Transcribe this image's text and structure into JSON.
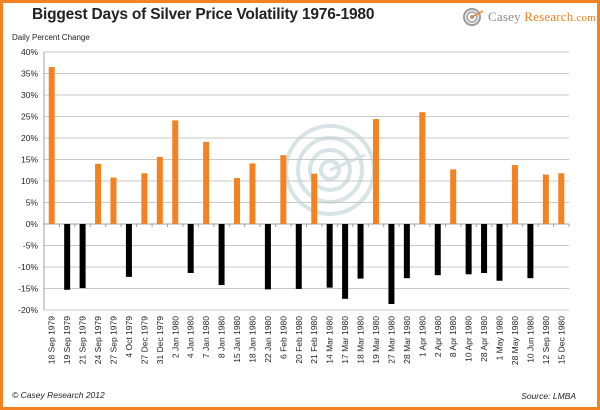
{
  "header": {
    "title": "Biggest Days of Silver Price Volatility 1976-1980",
    "logo_name": "casey-research-logo",
    "logo_text_1": "Casey ",
    "logo_text_2": "Research",
    "logo_text_3": ".com"
  },
  "footer": {
    "copyright": "© Casey Research 2012",
    "source": "Source: LMBA"
  },
  "colors": {
    "positive": "#f58220",
    "negative": "#000000",
    "border": "#f58220",
    "gridline": "#c8c8c8"
  },
  "chart_data": {
    "type": "bar",
    "title": "Biggest Days of Silver Price Volatility 1976-1980",
    "xlabel": "",
    "ylabel": "Daily Percent Change",
    "ylim": [
      -20,
      40
    ],
    "yticks": [
      40,
      35,
      30,
      25,
      20,
      15,
      10,
      5,
      0,
      -5,
      -10,
      -15,
      -20
    ],
    "ytick_labels": [
      "40%",
      "35%",
      "30%",
      "25%",
      "20%",
      "15%",
      "10%",
      "5%",
      "0%",
      "-5%",
      "-10%",
      "-15%",
      "-20%"
    ],
    "grid": true,
    "legend": "none",
    "categories": [
      "18 Sep 1979",
      "19 Sep 1979",
      "21 Sep 1979",
      "24 Sep 1979",
      "27 Sep 1979",
      "4 Oct 1979",
      "27 Dec 1979",
      "31 Dec 1979",
      "2 Jan 1980",
      "4 Jan 1980",
      "7 Jan 1980",
      "8 Jan 1980",
      "15 Jan 1980",
      "18 Jan 1980",
      "22 Jan 1980",
      "6 Feb 1980",
      "20 Feb 1980",
      "21 Feb 1980",
      "14 Mar 1980",
      "17 Mar 1980",
      "18 Mar 1980",
      "19 Mar 1980",
      "27 Mar 1980",
      "28 Mar 1980",
      "1 Apr 1980",
      "2 Apr 1980",
      "8 Apr 1980",
      "10 Apr 1980",
      "28 Apr 1980",
      "1 May 1980",
      "28 May 1980",
      "10 Jun 1980",
      "12 Sep 1980",
      "15 Dec 1980"
    ],
    "values": [
      36.5,
      -15.3,
      -14.9,
      14.0,
      10.8,
      -12.3,
      11.8,
      15.6,
      24.1,
      -11.4,
      19.1,
      -14.2,
      10.7,
      14.1,
      -15.2,
      16.0,
      -15.1,
      11.7,
      -14.8,
      -17.4,
      -12.7,
      24.4,
      -18.6,
      -12.6,
      26.0,
      -11.9,
      12.7,
      -11.7,
      -11.4,
      -13.2,
      13.7,
      -12.6,
      11.5,
      11.8
    ]
  }
}
